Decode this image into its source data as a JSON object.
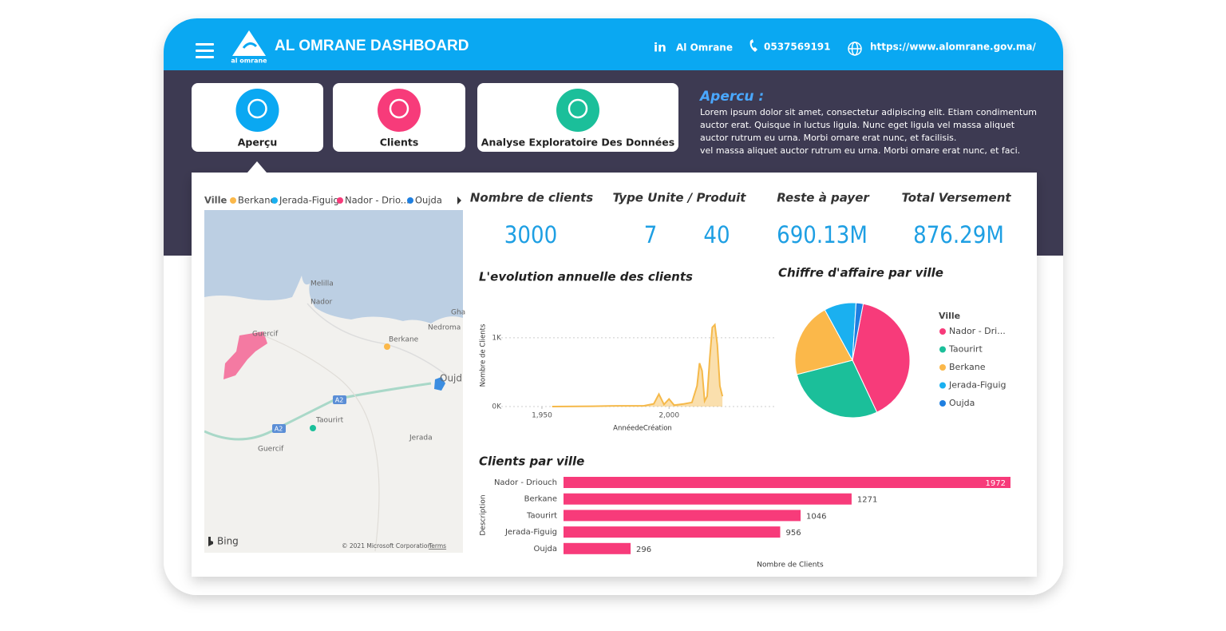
{
  "header": {
    "title": "AL OMRANE DASHBOARD",
    "logo_text": "al omrane",
    "linkedin_icon": "in",
    "linkedin": "Al Omrane",
    "phone": "0537569191",
    "website": "https://www.alomrane.gov.ma/"
  },
  "nav": [
    "Aperçu",
    "Clients",
    "Analyse Exploratoire Des Données"
  ],
  "apercu": {
    "title": "Apercu :",
    "lines": [
      "Lorem ipsum dolor sit amet, consectetur adipiscing elit. Etiam condimentum",
      "auctor erat. Quisque in luctus ligula. Nunc eget ligula vel massa aliquet",
      "auctor rutrum eu urna. Morbi ornare erat nunc, et facilisis.",
      "vel massa aliquet auctor rutrum eu urna. Morbi ornare erat nunc, et faci."
    ]
  },
  "map": {
    "legend_title": "Ville",
    "legend": [
      {
        "name": "Berkane",
        "color": "#fbb84a"
      },
      {
        "name": "Jerada-Figuig",
        "color": "#1ab0f0"
      },
      {
        "name": "Nador - Drio...",
        "color": "#f73b7a"
      },
      {
        "name": "Oujda",
        "color": "#1f7fe0"
      }
    ],
    "places": [
      "Melilla",
      "Nador",
      "Gha",
      "Nedroma",
      "Berkane",
      "Oujd",
      "Guercif",
      "Taourirt",
      "Jerada",
      "Guercif",
      "A2",
      "A2"
    ],
    "bing": "Bing",
    "attribution": "© 2021 Microsoft Corporation",
    "terms": "Terms"
  },
  "kpis": [
    {
      "label": "Nombre de clients",
      "values": [
        3000
      ]
    },
    {
      "label": "Type Unite / Produit",
      "values": [
        7,
        40
      ]
    },
    {
      "label": "Reste à payer",
      "values": [
        "690.13M"
      ]
    },
    {
      "label": "Total Versement",
      "values": [
        "876.29M"
      ]
    }
  ],
  "chart_data": [
    {
      "type": "line",
      "title": "L'evolution annuelle des clients",
      "xlabel": "AnnéedeCréation",
      "ylabel": "Nombre de Clients",
      "color": "#f5b94a",
      "x": [
        1954,
        1970,
        1980,
        1990,
        1994,
        1996,
        1998,
        2000,
        2002,
        2006,
        2009,
        2011,
        2012,
        2013,
        2014,
        2015,
        2016,
        2017,
        2018,
        2019,
        2020,
        2021
      ],
      "values": [
        0,
        5,
        10,
        10,
        40,
        180,
        30,
        110,
        20,
        40,
        60,
        300,
        630,
        520,
        80,
        150,
        700,
        1150,
        1190,
        900,
        300,
        150
      ],
      "xlim": [
        1934,
        2042
      ],
      "ylim": [
        0,
        1300
      ],
      "xticks": [
        {
          "value": 1950,
          "label": "1,950"
        },
        {
          "value": 2000,
          "label": "2,000"
        }
      ],
      "yticks": [
        {
          "value": 0,
          "label": "0K"
        },
        {
          "value": 1000,
          "label": "1K"
        }
      ],
      "grid": true
    },
    {
      "type": "pie",
      "title": "Chiffre d'affaire par ville",
      "legend_title": "Ville",
      "categories": [
        "Nador - Dri...",
        "Taourirt",
        "Berkane",
        "Jerada-Figuig",
        "Oujda"
      ],
      "values": [
        40,
        28,
        21,
        9,
        2
      ],
      "colors": [
        "#f73b7a",
        "#1bbf9a",
        "#fbb84a",
        "#1ab0f0",
        "#1f7fe0"
      ]
    },
    {
      "type": "bar",
      "horizontal": true,
      "title": "Clients par ville",
      "xlabel": "Nombre de Clients",
      "ylabel": "Description",
      "categories": [
        "Nador - Driouch",
        "Berkane",
        "Taourirt",
        "Jerada-Figuig",
        "Oujda"
      ],
      "values": [
        1972,
        1271,
        1046,
        956,
        296
      ],
      "color": "#f73b7a"
    }
  ]
}
